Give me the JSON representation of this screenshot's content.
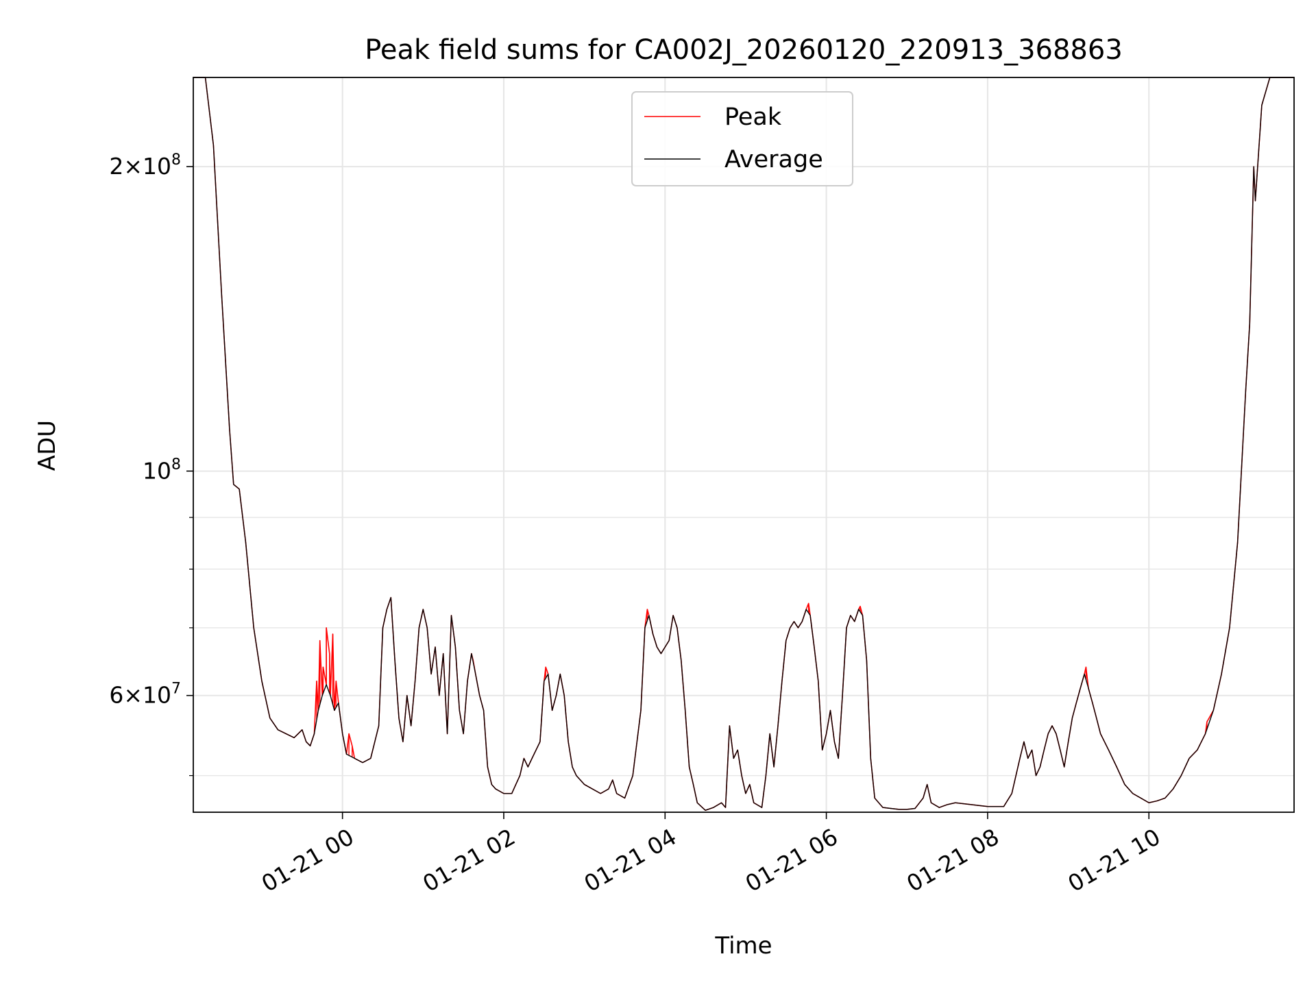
{
  "chart_data": {
    "type": "line",
    "title": "Peak field sums for CA002J_20260120_220913_368863",
    "xlabel": "Time",
    "ylabel": "ADU",
    "y_scale": "log",
    "ylim": [
      46000000,
      245000000
    ],
    "xlim_hours": [
      -1.85,
      11.8
    ],
    "x_reference": "2026-01-21 00:00",
    "x_ticks": [
      {
        "hours": 0,
        "label": "01-21 00"
      },
      {
        "hours": 2,
        "label": "01-21 02"
      },
      {
        "hours": 4,
        "label": "01-21 04"
      },
      {
        "hours": 6,
        "label": "01-21 06"
      },
      {
        "hours": 8,
        "label": "01-21 08"
      },
      {
        "hours": 10,
        "label": "01-21 10"
      }
    ],
    "y_ticks_major": [
      {
        "value": 100000000,
        "base": "10",
        "exp": "8",
        "mant": ""
      },
      {
        "value": 200000000,
        "base": "10",
        "exp": "8",
        "mant": "2"
      },
      {
        "value": 60000000,
        "base": "10",
        "exp": "7",
        "mant": "6"
      }
    ],
    "y_ticks_minor": [
      50000000,
      70000000,
      80000000,
      90000000,
      300000000
    ],
    "grid": true,
    "legend_position": "top-center",
    "series": [
      {
        "name": "Peak",
        "color": "#ff0000"
      },
      {
        "name": "Average",
        "color": "#000000"
      }
    ],
    "average_points": [
      [
        -1.85,
        245
      ],
      [
        -1.7,
        245
      ],
      [
        -1.6,
        210
      ],
      [
        -1.5,
        150
      ],
      [
        -1.4,
        110
      ],
      [
        -1.35,
        97
      ],
      [
        -1.28,
        96
      ],
      [
        -1.2,
        85
      ],
      [
        -1.1,
        70
      ],
      [
        -1.0,
        62
      ],
      [
        -0.9,
        57
      ],
      [
        -0.8,
        55.5
      ],
      [
        -0.7,
        55
      ],
      [
        -0.6,
        54.5
      ],
      [
        -0.55,
        55
      ],
      [
        -0.5,
        55.5
      ],
      [
        -0.45,
        54
      ],
      [
        -0.4,
        53.5
      ],
      [
        -0.35,
        55
      ],
      [
        -0.3,
        58
      ],
      [
        -0.25,
        60
      ],
      [
        -0.2,
        61.5
      ],
      [
        -0.15,
        60
      ],
      [
        -0.1,
        58
      ],
      [
        -0.05,
        59
      ],
      [
        0.0,
        55
      ],
      [
        0.05,
        52.5
      ],
      [
        0.15,
        52
      ],
      [
        0.25,
        51.5
      ],
      [
        0.35,
        52
      ],
      [
        0.45,
        56
      ],
      [
        0.5,
        70
      ],
      [
        0.55,
        73
      ],
      [
        0.6,
        75
      ],
      [
        0.65,
        65
      ],
      [
        0.7,
        57
      ],
      [
        0.75,
        54
      ],
      [
        0.8,
        60
      ],
      [
        0.85,
        56
      ],
      [
        0.9,
        62
      ],
      [
        0.95,
        70
      ],
      [
        1.0,
        73
      ],
      [
        1.05,
        70
      ],
      [
        1.1,
        63
      ],
      [
        1.15,
        67
      ],
      [
        1.2,
        60
      ],
      [
        1.25,
        66
      ],
      [
        1.3,
        55
      ],
      [
        1.35,
        72
      ],
      [
        1.4,
        67
      ],
      [
        1.45,
        58
      ],
      [
        1.5,
        55
      ],
      [
        1.55,
        62
      ],
      [
        1.6,
        66
      ],
      [
        1.65,
        63
      ],
      [
        1.7,
        60
      ],
      [
        1.75,
        58
      ],
      [
        1.8,
        51
      ],
      [
        1.85,
        49
      ],
      [
        1.9,
        48.5
      ],
      [
        2.0,
        48
      ],
      [
        2.1,
        48
      ],
      [
        2.15,
        49
      ],
      [
        2.2,
        50
      ],
      [
        2.25,
        52
      ],
      [
        2.3,
        51
      ],
      [
        2.35,
        52
      ],
      [
        2.45,
        54
      ],
      [
        2.5,
        62
      ],
      [
        2.55,
        63
      ],
      [
        2.6,
        58
      ],
      [
        2.65,
        60
      ],
      [
        2.7,
        63
      ],
      [
        2.75,
        60
      ],
      [
        2.8,
        54
      ],
      [
        2.85,
        51
      ],
      [
        2.9,
        50
      ],
      [
        3.0,
        49
      ],
      [
        3.1,
        48.5
      ],
      [
        3.2,
        48
      ],
      [
        3.3,
        48.5
      ],
      [
        3.35,
        49.5
      ],
      [
        3.4,
        48
      ],
      [
        3.5,
        47.5
      ],
      [
        3.6,
        50
      ],
      [
        3.7,
        58
      ],
      [
        3.75,
        70
      ],
      [
        3.8,
        72
      ],
      [
        3.85,
        69
      ],
      [
        3.9,
        67
      ],
      [
        3.95,
        66
      ],
      [
        4.0,
        67
      ],
      [
        4.05,
        68
      ],
      [
        4.1,
        72
      ],
      [
        4.15,
        70
      ],
      [
        4.2,
        65
      ],
      [
        4.25,
        58
      ],
      [
        4.3,
        51
      ],
      [
        4.35,
        49
      ],
      [
        4.4,
        47
      ],
      [
        4.5,
        46.2
      ],
      [
        4.6,
        46.5
      ],
      [
        4.7,
        47
      ],
      [
        4.75,
        46.5
      ],
      [
        4.8,
        56
      ],
      [
        4.85,
        52
      ],
      [
        4.9,
        53
      ],
      [
        4.95,
        50
      ],
      [
        5.0,
        48
      ],
      [
        5.05,
        49
      ],
      [
        5.1,
        47
      ],
      [
        5.2,
        46.5
      ],
      [
        5.25,
        50
      ],
      [
        5.3,
        55
      ],
      [
        5.35,
        51
      ],
      [
        5.4,
        56
      ],
      [
        5.45,
        62
      ],
      [
        5.5,
        68
      ],
      [
        5.55,
        70
      ],
      [
        5.6,
        71
      ],
      [
        5.65,
        70
      ],
      [
        5.7,
        71
      ],
      [
        5.75,
        73
      ],
      [
        5.8,
        72
      ],
      [
        5.85,
        67
      ],
      [
        5.9,
        62
      ],
      [
        5.95,
        53
      ],
      [
        6.0,
        55
      ],
      [
        6.05,
        58
      ],
      [
        6.1,
        54
      ],
      [
        6.15,
        52
      ],
      [
        6.2,
        60
      ],
      [
        6.25,
        70
      ],
      [
        6.3,
        72
      ],
      [
        6.35,
        71
      ],
      [
        6.4,
        73
      ],
      [
        6.45,
        72
      ],
      [
        6.5,
        65
      ],
      [
        6.55,
        52
      ],
      [
        6.6,
        47.5
      ],
      [
        6.7,
        46.5
      ],
      [
        6.8,
        46.4
      ],
      [
        6.9,
        46.3
      ],
      [
        7.0,
        46.3
      ],
      [
        7.1,
        46.4
      ],
      [
        7.2,
        47.5
      ],
      [
        7.25,
        49
      ],
      [
        7.3,
        47
      ],
      [
        7.4,
        46.5
      ],
      [
        7.5,
        46.8
      ],
      [
        7.6,
        47
      ],
      [
        7.8,
        46.8
      ],
      [
        8.0,
        46.6
      ],
      [
        8.2,
        46.6
      ],
      [
        8.3,
        48
      ],
      [
        8.4,
        52
      ],
      [
        8.45,
        54
      ],
      [
        8.5,
        52
      ],
      [
        8.55,
        53
      ],
      [
        8.6,
        50
      ],
      [
        8.65,
        51
      ],
      [
        8.7,
        53
      ],
      [
        8.75,
        55
      ],
      [
        8.8,
        56
      ],
      [
        8.85,
        55
      ],
      [
        8.9,
        53
      ],
      [
        8.95,
        51
      ],
      [
        9.0,
        54
      ],
      [
        9.05,
        57
      ],
      [
        9.1,
        59
      ],
      [
        9.15,
        61
      ],
      [
        9.2,
        63
      ],
      [
        9.25,
        61
      ],
      [
        9.3,
        59
      ],
      [
        9.35,
        57
      ],
      [
        9.4,
        55
      ],
      [
        9.5,
        53
      ],
      [
        9.6,
        51
      ],
      [
        9.7,
        49
      ],
      [
        9.8,
        48
      ],
      [
        9.9,
        47.5
      ],
      [
        10.0,
        47
      ],
      [
        10.1,
        47.2
      ],
      [
        10.2,
        47.5
      ],
      [
        10.3,
        48.5
      ],
      [
        10.4,
        50
      ],
      [
        10.5,
        52
      ],
      [
        10.6,
        53
      ],
      [
        10.7,
        55
      ],
      [
        10.8,
        58
      ],
      [
        10.9,
        63
      ],
      [
        11.0,
        70
      ],
      [
        11.1,
        85
      ],
      [
        11.2,
        120
      ],
      [
        11.25,
        140
      ],
      [
        11.3,
        200
      ],
      [
        11.32,
        185
      ],
      [
        11.4,
        230
      ],
      [
        11.5,
        245
      ],
      [
        11.8,
        245
      ]
    ],
    "peak_extra_points": [
      [
        -0.32,
        62
      ],
      [
        -0.28,
        68
      ],
      [
        -0.24,
        64
      ],
      [
        -0.2,
        70
      ],
      [
        -0.16,
        66
      ],
      [
        -0.12,
        69
      ],
      [
        -0.08,
        62
      ],
      [
        0.08,
        55
      ],
      [
        0.12,
        53.5
      ],
      [
        1.62,
        65
      ],
      [
        2.52,
        64
      ],
      [
        3.78,
        73
      ],
      [
        5.78,
        74
      ],
      [
        6.42,
        73.5
      ],
      [
        9.22,
        64
      ],
      [
        10.72,
        56.5
      ]
    ]
  }
}
